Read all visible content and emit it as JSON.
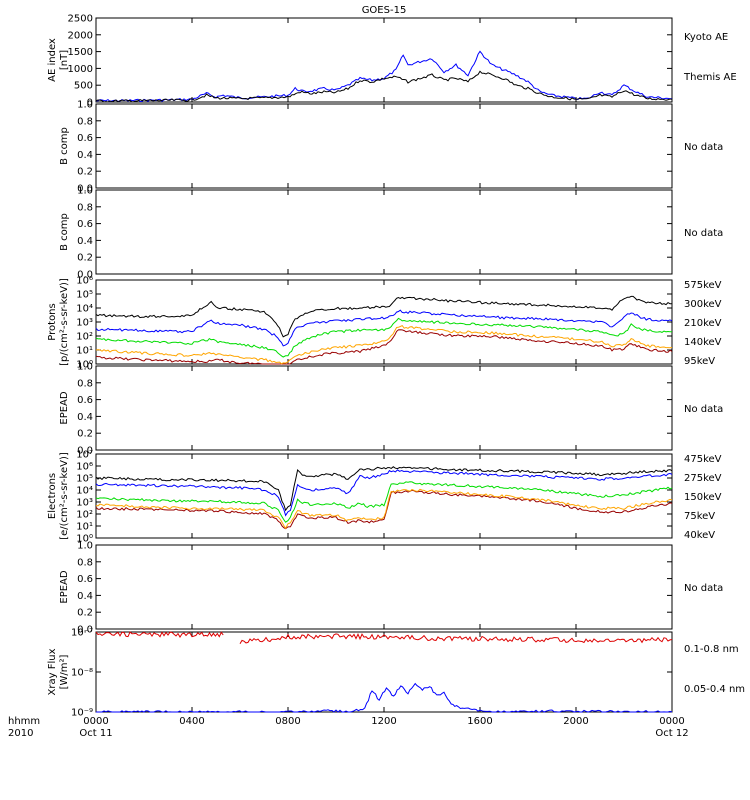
{
  "chart_data": [
    {
      "type": "line",
      "title": "GOES-15",
      "ylabel_line1": "AE index",
      "ylabel_line2": "[nT]",
      "ylim": [
        0,
        2500
      ],
      "yticks": [
        "0",
        "500",
        "1000",
        "1500",
        "2000",
        "2500"
      ],
      "series": [
        {
          "name": "Kyoto AE",
          "color": "#0000ff",
          "x": [
            0,
            1,
            2,
            3,
            4,
            4.6,
            5,
            5.3,
            6,
            7,
            8,
            8.3,
            8.7,
            9.5,
            10,
            10.5,
            11,
            11.5,
            12,
            12.5,
            12.8,
            13,
            13.5,
            14,
            14.5,
            15,
            15.5,
            16,
            16.5,
            17,
            17.5,
            18,
            18.5,
            19,
            19.5,
            20,
            20.5,
            21,
            21.5,
            22,
            22.5,
            23,
            24
          ],
          "y": [
            40,
            40,
            50,
            60,
            80,
            250,
            150,
            200,
            120,
            150,
            200,
            400,
            300,
            400,
            350,
            500,
            700,
            650,
            700,
            950,
            1400,
            1100,
            1200,
            1300,
            900,
            1100,
            800,
            1500,
            1100,
            950,
            800,
            600,
            300,
            200,
            150,
            100,
            100,
            300,
            200,
            500,
            300,
            150,
            100
          ]
        },
        {
          "name": "Themis AE",
          "color": "#000000",
          "x": [
            0,
            1,
            2,
            3,
            4,
            4.6,
            5,
            6,
            7,
            8,
            8.5,
            9,
            9.5,
            10,
            10.5,
            11,
            11.5,
            12,
            12.5,
            13,
            13.5,
            14,
            14.5,
            15,
            15.5,
            16,
            16.5,
            17,
            17.5,
            18,
            18.5,
            19,
            19.5,
            20,
            20.5,
            21,
            21.5,
            22,
            22.5,
            23,
            24
          ],
          "y": [
            30,
            30,
            40,
            50,
            60,
            200,
            120,
            100,
            120,
            150,
            300,
            250,
            300,
            280,
            400,
            650,
            600,
            700,
            750,
            600,
            700,
            800,
            650,
            700,
            600,
            900,
            800,
            700,
            500,
            400,
            250,
            150,
            120,
            80,
            80,
            200,
            150,
            350,
            200,
            100,
            80
          ]
        }
      ]
    },
    {
      "type": "line",
      "ylabel": "B comp",
      "ylim": [
        0,
        1
      ],
      "yticks": [
        "0.0",
        "0.2",
        "0.4",
        "0.6",
        "0.8",
        "1.0"
      ],
      "status": "No data"
    },
    {
      "type": "line",
      "ylabel": "B comp",
      "ylim": [
        0,
        1
      ],
      "yticks": [
        "0.0",
        "0.2",
        "0.4",
        "0.6",
        "0.8",
        "1.0"
      ],
      "status": "No data"
    },
    {
      "type": "line",
      "ylabel_line1": "Protons",
      "ylabel_line2": "[p/(cm²-s-sr-keV)]",
      "yscale": "log",
      "ylim": [
        1,
        1000000
      ],
      "yticks": [
        "10⁰",
        "10¹",
        "10²",
        "10³",
        "10⁴",
        "10⁵",
        "10⁶"
      ],
      "series": [
        {
          "name": "575keV",
          "color": "#990000",
          "x": [
            0,
            2,
            4,
            4.8,
            5,
            6,
            7,
            7.5,
            7.8,
            8,
            8.3,
            8.8,
            9.5,
            10,
            11,
            12,
            12.3,
            12.6,
            13,
            14,
            15,
            16,
            17,
            18,
            19,
            20,
            21,
            21.5,
            22,
            22.3,
            22.7,
            23,
            24
          ],
          "y": [
            3,
            2,
            1.5,
            1.5,
            2,
            1.2,
            1,
            0.8,
            0.6,
            0.7,
            2,
            3,
            5,
            6,
            8,
            20,
            50,
            300,
            200,
            150,
            100,
            100,
            80,
            50,
            40,
            30,
            20,
            10,
            12,
            30,
            15,
            10,
            8
          ]
        },
        {
          "name": "300keV",
          "color": "#ffa500",
          "x": [
            0,
            2,
            4,
            4.8,
            5,
            6,
            7,
            7.5,
            7.8,
            8,
            8.3,
            8.8,
            9.5,
            10,
            11,
            12,
            12.3,
            12.6,
            13,
            14,
            15,
            16,
            17,
            18,
            19,
            20,
            21,
            21.5,
            22,
            22.3,
            22.7,
            23,
            24
          ],
          "y": [
            10,
            6,
            4,
            6,
            5,
            3,
            2,
            1.5,
            1,
            1.2,
            4,
            6,
            12,
            15,
            20,
            40,
            100,
            500,
            400,
            300,
            200,
            180,
            150,
            100,
            80,
            60,
            40,
            20,
            25,
            60,
            30,
            20,
            15
          ]
        },
        {
          "name": "210keV",
          "color": "#00dd00",
          "x": [
            0,
            2,
            4,
            4.8,
            5,
            6,
            7,
            7.5,
            7.8,
            8,
            8.3,
            8.8,
            9.5,
            10,
            11,
            12,
            12.3,
            12.6,
            13,
            14,
            15,
            16,
            17,
            18,
            19,
            20,
            21,
            21.5,
            22,
            22.3,
            22.7,
            23,
            24
          ],
          "y": [
            60,
            40,
            30,
            60,
            40,
            25,
            15,
            8,
            3,
            4,
            20,
            60,
            150,
            200,
            250,
            300,
            500,
            1500,
            1200,
            1000,
            800,
            700,
            600,
            500,
            400,
            300,
            200,
            100,
            150,
            600,
            300,
            250,
            200
          ]
        },
        {
          "name": "140keV",
          "color": "#0000ff",
          "x": [
            0,
            2,
            4,
            4.8,
            5,
            6,
            7,
            7.5,
            7.8,
            8,
            8.3,
            8.8,
            9.5,
            10,
            11,
            12,
            12.3,
            12.6,
            13,
            14,
            15,
            16,
            17,
            18,
            19,
            20,
            21,
            21.5,
            22,
            22.3,
            22.7,
            23,
            24
          ],
          "y": [
            300,
            250,
            200,
            1500,
            800,
            600,
            300,
            100,
            20,
            30,
            300,
            800,
            1000,
            1200,
            1500,
            2000,
            2500,
            6000,
            5000,
            4000,
            3000,
            2500,
            2000,
            1800,
            1500,
            1200,
            1000,
            500,
            2000,
            5000,
            2000,
            1500,
            1200
          ]
        },
        {
          "name": "95keV",
          "color": "#000000",
          "x": [
            0,
            2,
            4,
            4.8,
            5,
            6,
            7,
            7.5,
            7.8,
            8,
            8.3,
            8.8,
            9.5,
            10,
            11,
            12,
            12.3,
            12.6,
            13,
            14,
            15,
            16,
            17,
            18,
            19,
            20,
            21,
            21.5,
            22,
            22.3,
            22.7,
            23,
            24
          ],
          "y": [
            3000,
            2500,
            3000,
            30000,
            10000,
            8000,
            5000,
            1000,
            100,
            150,
            1500,
            5000,
            8000,
            9000,
            10000,
            12000,
            15000,
            60000,
            50000,
            40000,
            30000,
            25000,
            20000,
            18000,
            15000,
            12000,
            10000,
            8000,
            50000,
            80000,
            30000,
            25000,
            20000
          ]
        }
      ]
    },
    {
      "type": "line",
      "ylabel": "EPEAD",
      "ylim": [
        0,
        1
      ],
      "yticks": [
        "0.0",
        "0.2",
        "0.4",
        "0.6",
        "0.8",
        "1.0"
      ],
      "status": "No data"
    },
    {
      "type": "line",
      "ylabel_line1": "Electrons",
      "ylabel_line2": "[e/(cm²-s-sr-keV)]",
      "yscale": "log",
      "ylim": [
        1,
        10000000
      ],
      "yticks": [
        "10⁰",
        "10¹",
        "10²",
        "10³",
        "10⁴",
        "10⁵",
        "10⁶",
        "10⁷"
      ],
      "series": [
        {
          "name": "475keV",
          "color": "#990000",
          "x": [
            0,
            2,
            4,
            6,
            7,
            7.6,
            7.9,
            8.1,
            8.4,
            8.6,
            9,
            10,
            10.5,
            11,
            11.3,
            12,
            12.3,
            13,
            14,
            15,
            16,
            17,
            18,
            19,
            20,
            21,
            22,
            23,
            24
          ],
          "y": [
            300,
            250,
            200,
            150,
            100,
            30,
            5,
            10,
            100,
            60,
            50,
            50,
            20,
            30,
            20,
            30,
            6000,
            8000,
            6000,
            4000,
            3000,
            2000,
            1500,
            800,
            300,
            150,
            150,
            400,
            800
          ]
        },
        {
          "name": "275keV",
          "color": "#ffa500",
          "x": [
            0,
            2,
            4,
            6,
            7,
            7.6,
            7.9,
            8.1,
            8.4,
            8.6,
            9,
            10,
            10.5,
            11,
            11.3,
            12,
            12.3,
            13,
            14,
            15,
            16,
            17,
            18,
            19,
            20,
            21,
            22,
            23,
            24
          ],
          "y": [
            600,
            400,
            300,
            250,
            200,
            50,
            8,
            20,
            200,
            100,
            80,
            80,
            30,
            50,
            30,
            50,
            8000,
            10000,
            8000,
            6000,
            4000,
            3000,
            2000,
            1200,
            500,
            300,
            300,
            800,
            1500
          ]
        },
        {
          "name": "150keV",
          "color": "#00dd00",
          "x": [
            0,
            2,
            4,
            6,
            7,
            7.6,
            7.9,
            8.1,
            8.4,
            8.6,
            9,
            10,
            10.5,
            11,
            11.3,
            12,
            12.3,
            13,
            14,
            15,
            16,
            17,
            18,
            19,
            20,
            21,
            22,
            23,
            24
          ],
          "y": [
            2000,
            1500,
            1200,
            1000,
            800,
            200,
            20,
            50,
            1500,
            800,
            600,
            800,
            300,
            800,
            400,
            600,
            30000,
            40000,
            30000,
            25000,
            20000,
            15000,
            12000,
            8000,
            5000,
            3000,
            4000,
            8000,
            15000
          ]
        },
        {
          "name": "75keV",
          "color": "#0000ff",
          "x": [
            0,
            2,
            4,
            6,
            7,
            7.6,
            7.9,
            8.1,
            8.4,
            8.6,
            9,
            10,
            10.5,
            11,
            11.3,
            12,
            12.3,
            13,
            14,
            15,
            16,
            17,
            18,
            19,
            20,
            21,
            22,
            23,
            24
          ],
          "y": [
            30000,
            25000,
            20000,
            15000,
            10000,
            3000,
            80,
            200,
            30000,
            15000,
            10000,
            15000,
            5000,
            150000,
            100000,
            200000,
            400000,
            350000,
            300000,
            250000,
            200000,
            180000,
            150000,
            120000,
            100000,
            80000,
            100000,
            150000,
            200000
          ]
        },
        {
          "name": "40keV",
          "color": "#000000",
          "x": [
            0,
            2,
            4,
            6,
            7,
            7.6,
            7.9,
            8.1,
            8.4,
            8.6,
            9,
            10,
            10.5,
            11,
            11.3,
            12,
            12.3,
            13,
            14,
            15,
            16,
            17,
            18,
            19,
            20,
            21,
            22,
            23,
            24
          ],
          "y": [
            100000,
            80000,
            70000,
            60000,
            50000,
            10000,
            200,
            500,
            500000,
            200000,
            150000,
            200000,
            80000,
            600000,
            500000,
            700000,
            800000,
            700000,
            600000,
            500000,
            450000,
            400000,
            350000,
            300000,
            250000,
            200000,
            250000,
            350000,
            400000
          ]
        }
      ]
    },
    {
      "type": "line",
      "ylabel": "EPEAD",
      "ylim": [
        0,
        1
      ],
      "yticks": [
        "0.0",
        "0.2",
        "0.4",
        "0.6",
        "0.8",
        "1.0"
      ],
      "status": "No data"
    },
    {
      "type": "line",
      "ylabel_line1": "Xray Flux",
      "ylabel_line2": "[W/m²]",
      "yscale": "log",
      "ylim": [
        1e-09,
        1e-07
      ],
      "yticks": [
        "10⁻⁹",
        "10⁻⁸",
        "10⁻⁷"
      ],
      "series": [
        {
          "name": "0.1-0.8 nm",
          "color": "#dd0000",
          "x": [
            0,
            2,
            4,
            5.3,
            6.0,
            8,
            10,
            12,
            14,
            16,
            18,
            20,
            22,
            24
          ],
          "y": [
            9e-08,
            8.8e-08,
            8.6e-08,
            8.5e-08,
            5.5e-08,
            7.5e-08,
            7.8e-08,
            7.5e-08,
            7e-08,
            6.8e-08,
            6.5e-08,
            6.2e-08,
            6e-08,
            6.5e-08
          ]
        },
        {
          "name": "0.05-0.4 nm",
          "color": "#0000ff",
          "x": [
            0,
            8.9,
            9.5,
            10.5,
            11.2,
            11.5,
            11.8,
            12.1,
            12.4,
            12.7,
            13.0,
            13.3,
            13.6,
            13.9,
            14.2,
            14.5,
            14.8,
            15.1,
            16,
            17,
            18,
            24
          ],
          "y": [
            1e-09,
            1e-09,
            1.1e-09,
            1e-09,
            1.2e-09,
            3.5e-09,
            2e-09,
            4e-09,
            2.5e-09,
            4.5e-09,
            3e-09,
            5e-09,
            3.5e-09,
            4.5e-09,
            2.5e-09,
            3e-09,
            1.5e-09,
            1.3e-09,
            1.1e-09,
            1e-09,
            1.05e-09,
            1e-09
          ]
        }
      ]
    }
  ],
  "xaxis": {
    "corner_top": "hhmm",
    "corner_bottom": "2010",
    "ticks": [
      "0000",
      "0400",
      "0800",
      "1200",
      "1600",
      "2000",
      "0000"
    ],
    "date_start": "Oct 11",
    "date_end": "Oct 12"
  }
}
